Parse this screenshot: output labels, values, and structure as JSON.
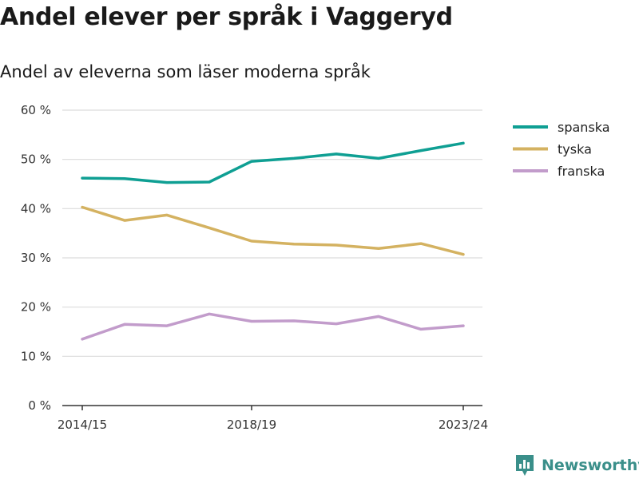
{
  "title": "Andel elever per språk i Vaggeryd",
  "subtitle": "Andel av eleverna som läser moderna språk",
  "brand": {
    "name": "Newsworthy",
    "icon": "newsworthy-logo-icon",
    "color": "#3a8f8a"
  },
  "chart_data": {
    "type": "line",
    "x": [
      "2014/15",
      "2015/16",
      "2016/17",
      "2017/18",
      "2018/19",
      "2019/20",
      "2020/21",
      "2021/22",
      "2022/23",
      "2023/24"
    ],
    "x_tick_labels": [
      "2014/15",
      "2018/19",
      "2023/24"
    ],
    "y_ticks": [
      0,
      10,
      20,
      30,
      40,
      50,
      60
    ],
    "y_tick_labels": [
      "0 %",
      "10 %",
      "20 %",
      "30 %",
      "40 %",
      "50 %",
      "60 %"
    ],
    "ylim": [
      0,
      60
    ],
    "grid": true,
    "legend_position": "right",
    "series": [
      {
        "name": "spanska",
        "color": "#0f9f93",
        "values": [
          46.2,
          46.1,
          45.3,
          45.4,
          49.6,
          50.2,
          51.1,
          50.2,
          51.8,
          53.3
        ]
      },
      {
        "name": "tyska",
        "color": "#d4b261",
        "values": [
          40.3,
          37.6,
          38.7,
          36.1,
          33.4,
          32.8,
          32.6,
          31.9,
          32.9,
          30.7
        ]
      },
      {
        "name": "franska",
        "color": "#c29ccb",
        "values": [
          13.5,
          16.5,
          16.2,
          18.6,
          17.1,
          17.2,
          16.6,
          18.1,
          15.5,
          16.2
        ]
      }
    ]
  }
}
